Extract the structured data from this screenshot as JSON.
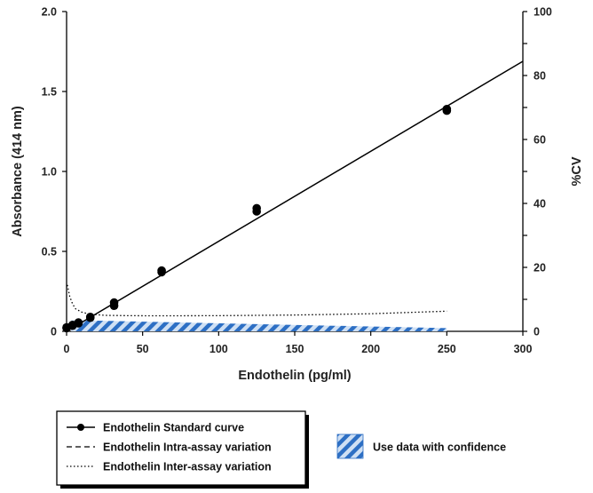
{
  "chart_data": {
    "type": "scatter",
    "x_axis": {
      "label": "Endothelin (pg/ml)",
      "range": [
        0,
        300
      ],
      "ticks": [
        0,
        50,
        100,
        150,
        200,
        250,
        300
      ]
    },
    "y_axis_left": {
      "label": "Absorbance (414 nm)",
      "range": [
        0,
        2.0
      ],
      "ticks": [
        "0",
        "0.5",
        "1.0",
        "1.5",
        "2.0"
      ]
    },
    "y_axis_right": {
      "label": "%CV",
      "range": [
        0,
        100
      ],
      "ticks": [
        0,
        20,
        40,
        60,
        80,
        100
      ]
    },
    "grid": false,
    "series": [
      {
        "name": "Endothelin Standard curve",
        "kind": "points_with_fit_line",
        "axis": "left",
        "color": "#000000",
        "points": [
          [
            0,
            0.02
          ],
          [
            0,
            0.025
          ],
          [
            3.9,
            0.04
          ],
          [
            3.9,
            0.035
          ],
          [
            7.8,
            0.05
          ],
          [
            7.8,
            0.055
          ],
          [
            15.6,
            0.09
          ],
          [
            15.6,
            0.085
          ],
          [
            31.25,
            0.18
          ],
          [
            31.25,
            0.16
          ],
          [
            62.5,
            0.38
          ],
          [
            62.5,
            0.37
          ],
          [
            125,
            0.77
          ],
          [
            125,
            0.75
          ],
          [
            250,
            1.39
          ],
          [
            250,
            1.38
          ]
        ],
        "fit_line": {
          "slope": 0.00563,
          "intercept": 0.0,
          "x_range": [
            0,
            300
          ]
        }
      },
      {
        "name": "Endothelin Intra-assay variation",
        "kind": "line",
        "axis": "right",
        "style": "dashed",
        "points": []
      },
      {
        "name": "Endothelin Inter-assay variation",
        "kind": "line",
        "axis": "right",
        "style": "dotted",
        "points": [
          [
            0.5,
            14.5
          ],
          [
            2,
            11
          ],
          [
            4,
            8.5
          ],
          [
            6,
            7
          ],
          [
            10,
            6
          ],
          [
            15,
            5.4
          ],
          [
            25,
            5.0
          ],
          [
            40,
            4.9
          ],
          [
            60,
            4.85
          ],
          [
            100,
            4.9
          ],
          [
            150,
            5.1
          ],
          [
            200,
            5.5
          ],
          [
            250,
            6.3
          ]
        ]
      },
      {
        "name": "Use data with confidence",
        "kind": "hatched_area",
        "axis": "right",
        "color": "#2d6fc4",
        "upper": [
          [
            3,
            3.5
          ],
          [
            250,
            1.0
          ]
        ],
        "lower": [
          [
            3,
            0
          ],
          [
            250,
            0
          ]
        ]
      }
    ],
    "legend": {
      "placement": "bottom-left",
      "entries": [
        {
          "label": "Endothelin Standard curve",
          "symbol": "line-with-dot"
        },
        {
          "label": "Endothelin Intra-assay variation",
          "symbol": "dashed"
        },
        {
          "label": "Endothelin Inter-assay variation",
          "symbol": "dotted"
        }
      ],
      "extra": {
        "label": "Use data with confidence",
        "symbol": "hatched-box"
      }
    }
  }
}
